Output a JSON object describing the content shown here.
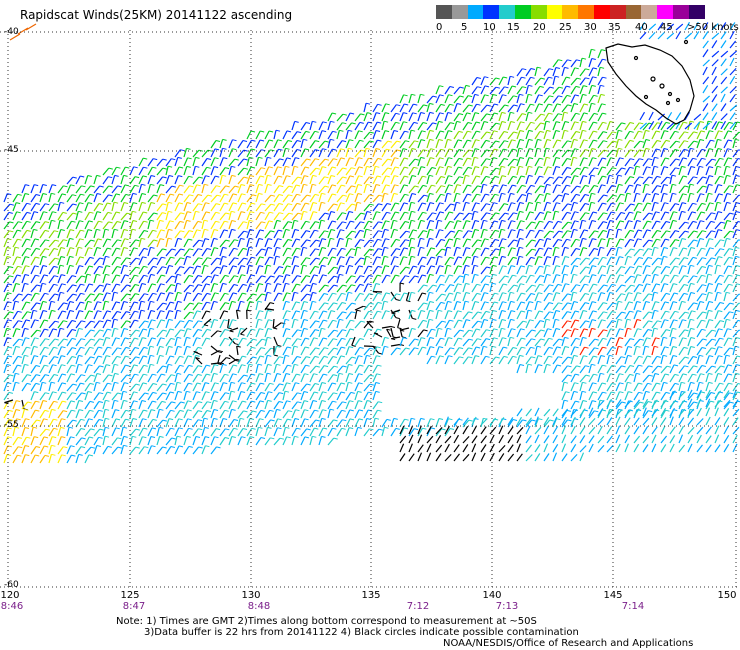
{
  "title": "Rapidscat Winds(25KM) 20141122 ascending",
  "colorbar": {
    "colors": [
      "#555555",
      "#999999",
      "#00aaff",
      "#0033ff",
      "#22cccc",
      "#00cc22",
      "#88dd00",
      "#ffff00",
      "#ffbb00",
      "#ff7700",
      "#ff0000",
      "#cc2222",
      "#996633",
      "#ccaa99",
      "#ff00ff",
      "#990099",
      "#330066"
    ],
    "labels": [
      "0",
      "5",
      "10",
      "15",
      "20",
      "25",
      "30",
      "35",
      "40",
      "45",
      ">50 knots"
    ]
  },
  "map": {
    "lat_labels": [
      "-40",
      "-45",
      "-55",
      "-60"
    ],
    "lon_labels": [
      "120",
      "125",
      "130",
      "135",
      "140",
      "145",
      "150"
    ],
    "time_labels": [
      "8:46",
      "8:47",
      "8:48",
      "7:12",
      "7:13",
      "7:14"
    ]
  },
  "notes": {
    "line1": "Note: 1) Times are GMT 2)Times along bottom correspond to measurement at ~50S",
    "line2": "3)Data buffer is 22 hrs from 20141122 4) Black circles indicate possible contamination",
    "line3": "NOAA/NESDIS/Office of Research and Applications"
  }
}
